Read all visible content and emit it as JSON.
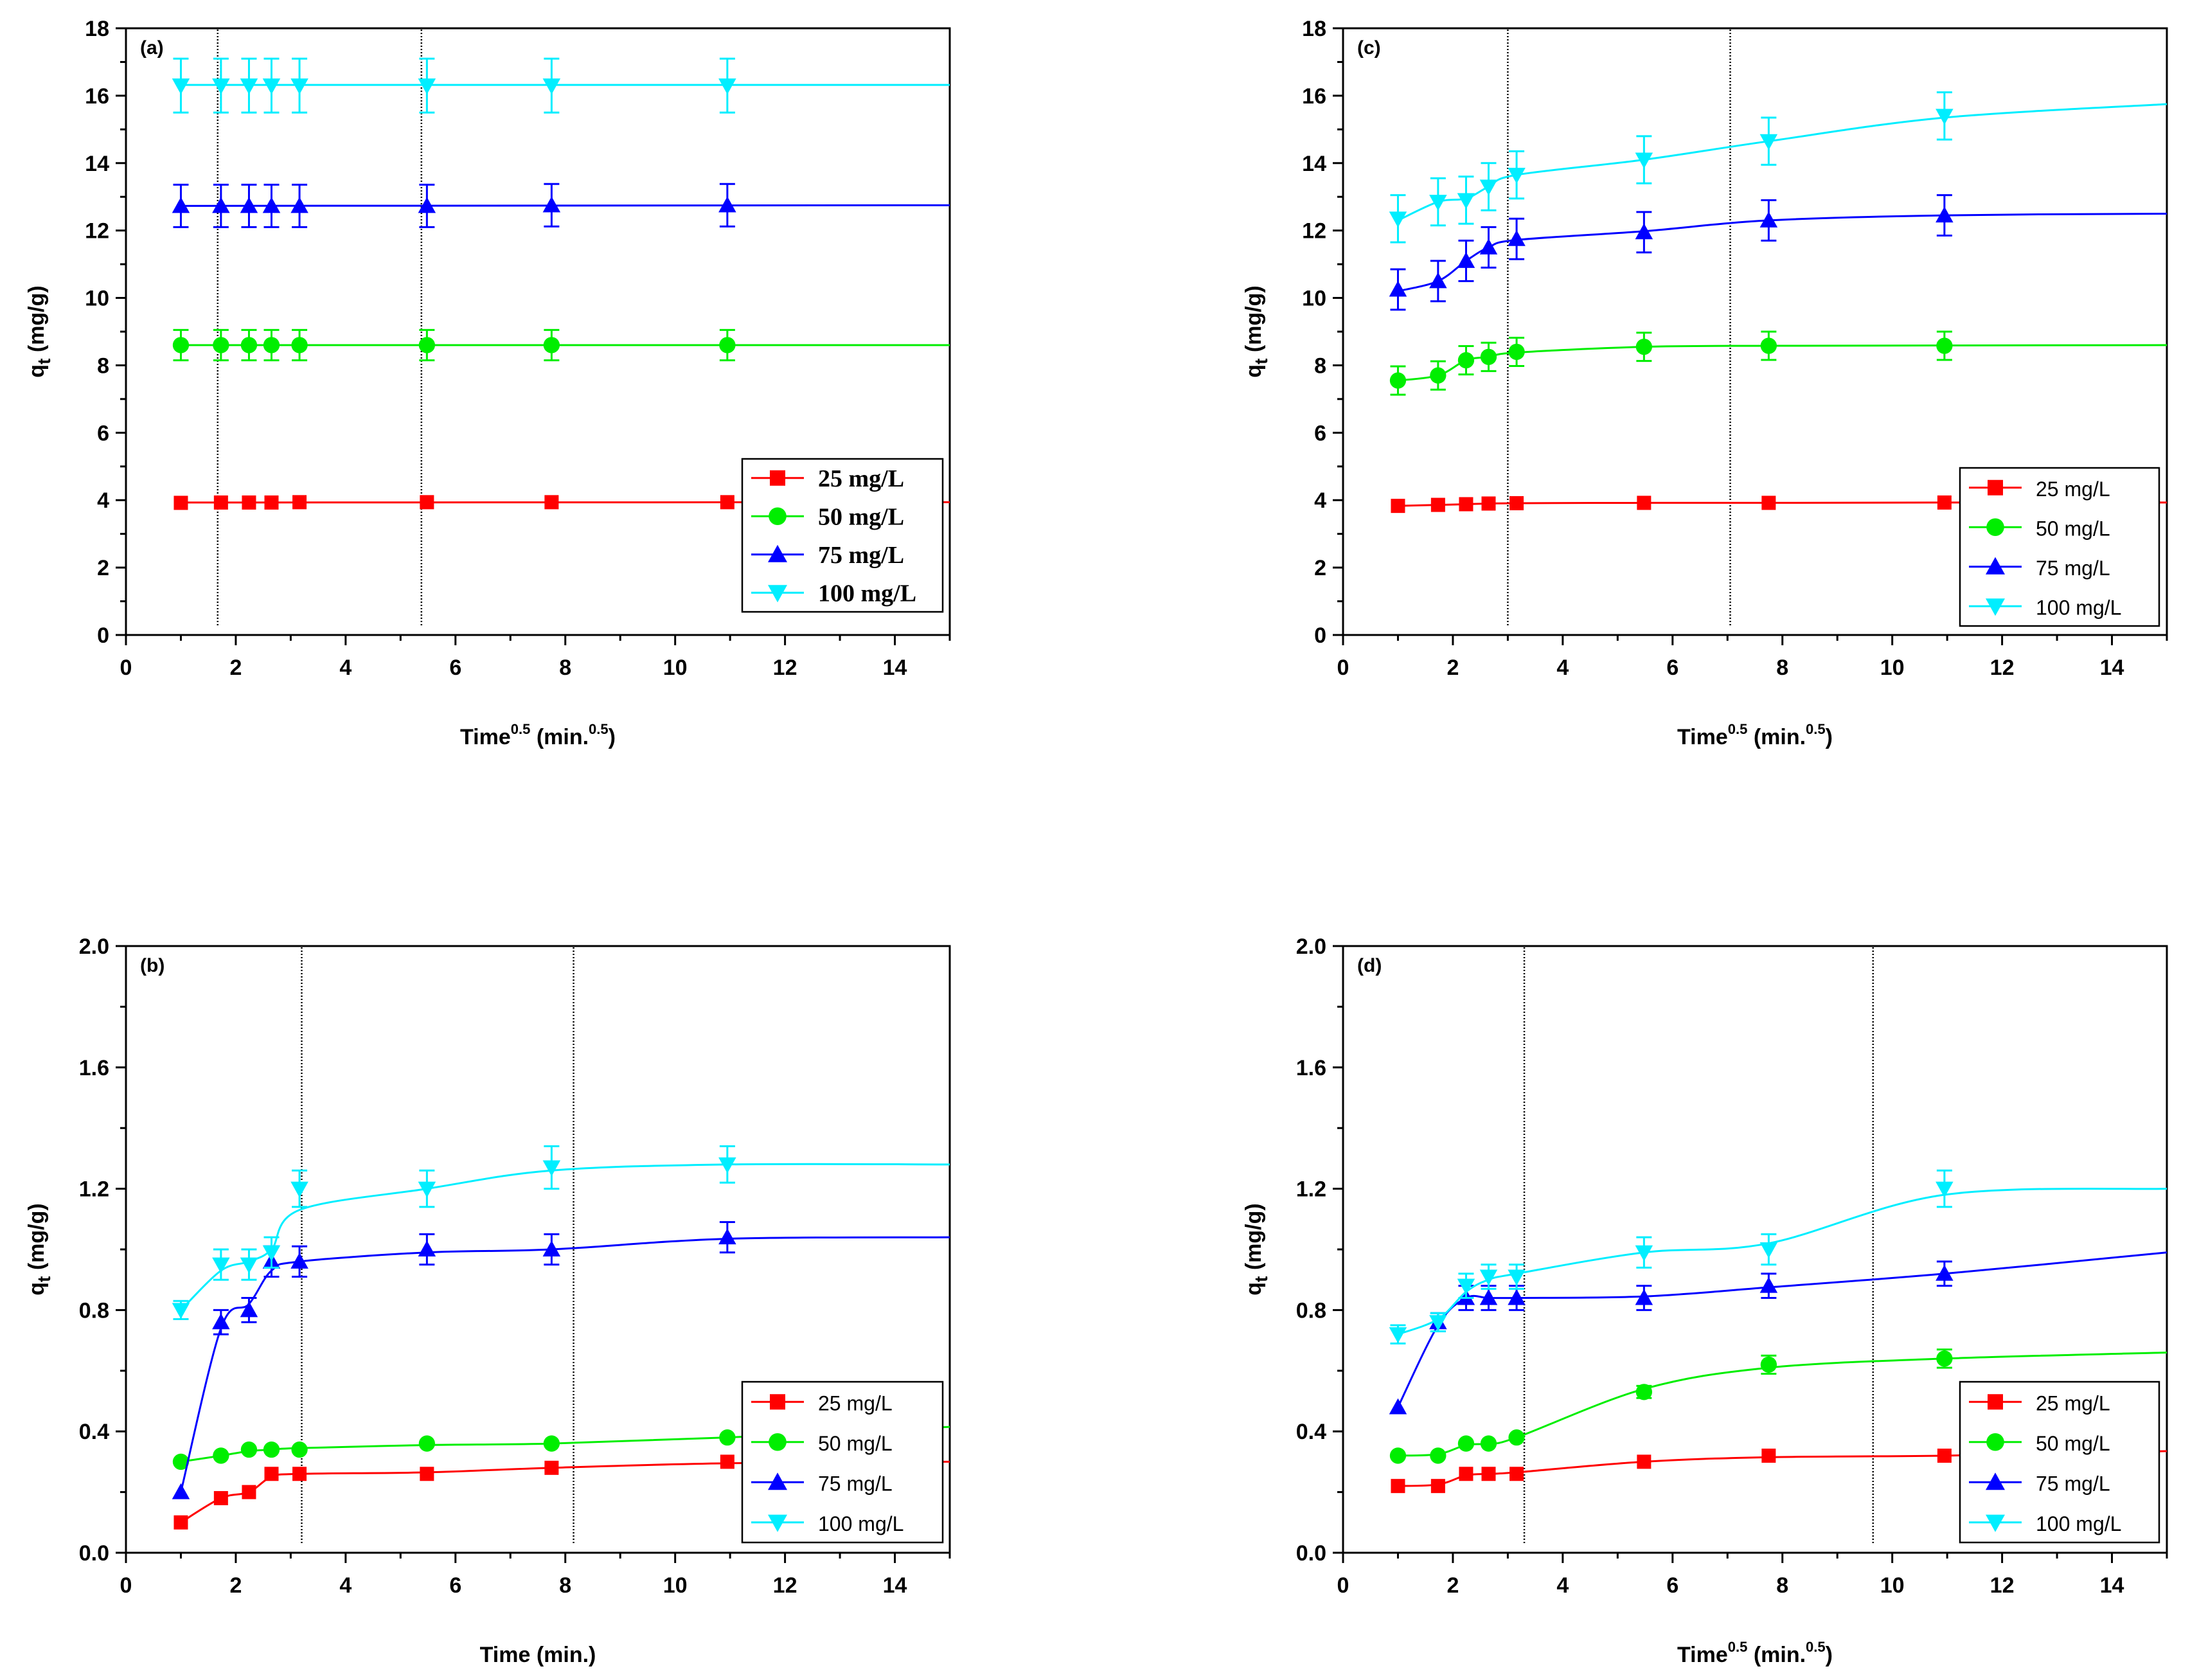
{
  "figure": {
    "description_labels": [
      "(a)",
      "(b)",
      "(c)",
      "(d)"
    ]
  },
  "colors": {
    "25 mg/L": "#ff0000",
    "50 mg/L": "#00ee00",
    "75 mg/L": "#0000ff",
    "100 mg/L": "#00eeff"
  },
  "chart_data": [
    {
      "panel": "(a)",
      "type": "line",
      "title": "",
      "xlabel": "Time",
      "xlabel_sup1": "0.5",
      "xlabel_mid": " (min.",
      "xlabel_sup2": "0.5",
      "xlabel_end": ")",
      "ylabel": "q",
      "ylabel_sub": "t",
      "ylabel_unit": " (mg/g)",
      "xlim": [
        0,
        15
      ],
      "ylim": [
        0,
        18
      ],
      "xticks": [
        "0",
        "2",
        "4",
        "6",
        "8",
        "10",
        "12",
        "14"
      ],
      "xtick_values": [
        0,
        2,
        4,
        6,
        8,
        10,
        12,
        14
      ],
      "yticks": [
        "0",
        "2",
        "4",
        "6",
        "8",
        "10",
        "12",
        "14",
        "16",
        "18"
      ],
      "ytick_values": [
        0,
        2,
        4,
        6,
        8,
        10,
        12,
        14,
        16,
        18
      ],
      "vlines": [
        1.67,
        5.38
      ],
      "legend_style": "serif",
      "x": [
        1,
        1.73,
        2.24,
        2.65,
        3.16,
        5.48,
        7.75,
        10.95
      ],
      "series": [
        {
          "name": "25 mg/L",
          "marker": "square",
          "values": [
            3.92,
            3.93,
            3.93,
            3.93,
            3.94,
            3.94,
            3.94,
            3.94
          ],
          "err": [
            0,
            0,
            0,
            0,
            0,
            0,
            0,
            0
          ],
          "fit_x": [
            1,
            15
          ],
          "fit_y": [
            3.93,
            3.94
          ]
        },
        {
          "name": "50 mg/L",
          "marker": "circle",
          "values": [
            8.6,
            8.6,
            8.6,
            8.6,
            8.6,
            8.6,
            8.6,
            8.6
          ],
          "err": [
            0.45,
            0.45,
            0.45,
            0.45,
            0.45,
            0.45,
            0.45,
            0.45
          ],
          "fit_x": [
            1,
            15
          ],
          "fit_y": [
            8.6,
            8.6
          ]
        },
        {
          "name": "75 mg/L",
          "marker": "triangle-up",
          "values": [
            12.73,
            12.73,
            12.73,
            12.73,
            12.73,
            12.73,
            12.75,
            12.75
          ],
          "err": [
            0.63,
            0.63,
            0.63,
            0.63,
            0.63,
            0.63,
            0.63,
            0.63
          ],
          "fit_x": [
            1,
            15
          ],
          "fit_y": [
            12.73,
            12.75
          ]
        },
        {
          "name": "100 mg/L",
          "marker": "triangle-down",
          "values": [
            16.3,
            16.3,
            16.3,
            16.3,
            16.3,
            16.3,
            16.3,
            16.3
          ],
          "err": [
            0.8,
            0.8,
            0.8,
            0.8,
            0.8,
            0.8,
            0.8,
            0.8
          ],
          "fit_x": [
            1,
            15
          ],
          "fit_y": [
            16.32,
            16.32
          ]
        }
      ]
    },
    {
      "panel": "(c)",
      "type": "line",
      "title": "",
      "xlabel": "Time",
      "xlabel_sup1": "0.5",
      "xlabel_mid": " (min.",
      "xlabel_sup2": "0.5",
      "xlabel_end": ")",
      "ylabel": "q",
      "ylabel_sub": "t",
      "ylabel_unit": " (mg/g)",
      "xlim": [
        0,
        15
      ],
      "ylim": [
        0,
        18
      ],
      "xticks": [
        "0",
        "2",
        "4",
        "6",
        "8",
        "10",
        "12",
        "14"
      ],
      "xtick_values": [
        0,
        2,
        4,
        6,
        8,
        10,
        12,
        14
      ],
      "yticks": [
        "0",
        "2",
        "4",
        "6",
        "8",
        "10",
        "12",
        "14",
        "16",
        "18"
      ],
      "ytick_values": [
        0,
        2,
        4,
        6,
        8,
        10,
        12,
        14,
        16,
        18
      ],
      "vlines": [
        3.0,
        7.05
      ],
      "legend_style": "sans",
      "x": [
        1,
        1.73,
        2.24,
        2.65,
        3.16,
        5.48,
        7.75,
        10.95
      ],
      "series": [
        {
          "name": "25 mg/L",
          "marker": "square",
          "values": [
            3.83,
            3.86,
            3.88,
            3.9,
            3.91,
            3.92,
            3.92,
            3.93
          ],
          "err": [
            0,
            0,
            0,
            0,
            0,
            0,
            0,
            0
          ],
          "fit_x": [
            1,
            1.73,
            2.24,
            2.65,
            3.16,
            5.48,
            7.75,
            10.95,
            15
          ],
          "fit_y": [
            3.83,
            3.86,
            3.88,
            3.9,
            3.91,
            3.92,
            3.92,
            3.93,
            3.93
          ]
        },
        {
          "name": "50 mg/L",
          "marker": "circle",
          "values": [
            7.55,
            7.7,
            8.15,
            8.25,
            8.4,
            8.55,
            8.58,
            8.58
          ],
          "err": [
            0.42,
            0.42,
            0.42,
            0.42,
            0.42,
            0.42,
            0.42,
            0.42
          ],
          "fit_x": [
            1,
            1.73,
            2.24,
            2.65,
            3.16,
            5.48,
            7.75,
            10.95,
            15
          ],
          "fit_y": [
            7.55,
            7.7,
            8.15,
            8.25,
            8.38,
            8.55,
            8.58,
            8.59,
            8.6
          ]
        },
        {
          "name": "75 mg/L",
          "marker": "triangle-up",
          "values": [
            10.25,
            10.5,
            11.1,
            11.5,
            11.75,
            11.95,
            12.3,
            12.45
          ],
          "err": [
            0.6,
            0.6,
            0.6,
            0.6,
            0.6,
            0.6,
            0.6,
            0.6
          ],
          "fit_x": [
            1,
            1.73,
            2.24,
            2.65,
            3.16,
            5.48,
            7.75,
            10.95,
            15
          ],
          "fit_y": [
            10.2,
            10.5,
            11.1,
            11.5,
            11.72,
            11.98,
            12.3,
            12.45,
            12.5
          ]
        },
        {
          "name": "100 mg/L",
          "marker": "triangle-down",
          "values": [
            12.35,
            12.85,
            12.9,
            13.3,
            13.65,
            14.1,
            14.65,
            15.4
          ],
          "err": [
            0.7,
            0.7,
            0.7,
            0.7,
            0.7,
            0.7,
            0.7,
            0.7
          ],
          "fit_x": [
            1,
            1.73,
            2.24,
            2.65,
            3.16,
            5.48,
            7.75,
            10.95,
            15
          ],
          "fit_y": [
            12.3,
            12.85,
            12.95,
            13.3,
            13.65,
            14.1,
            14.65,
            15.35,
            15.75
          ]
        }
      ]
    },
    {
      "panel": "(b)",
      "type": "line",
      "title": "",
      "xlabel": "Time (min.)",
      "ylabel": "q",
      "ylabel_sub": "t",
      "ylabel_unit": " (mg/g)",
      "xlim": [
        0,
        15
      ],
      "ylim": [
        0,
        2.0
      ],
      "xticks": [
        "0",
        "2",
        "4",
        "6",
        "8",
        "10",
        "12",
        "14"
      ],
      "xtick_values": [
        0,
        2,
        4,
        6,
        8,
        10,
        12,
        14
      ],
      "yticks": [
        "0.0",
        "0.4",
        "0.8",
        "1.2",
        "1.6",
        "2.0"
      ],
      "ytick_values": [
        0,
        0.4,
        0.8,
        1.2,
        1.6,
        2.0
      ],
      "vlines": [
        3.2,
        8.15
      ],
      "legend_style": "sans",
      "x": [
        1,
        1.73,
        2.24,
        2.65,
        3.16,
        5.48,
        7.75,
        10.95
      ],
      "series": [
        {
          "name": "25 mg/L",
          "marker": "square",
          "values": [
            0.1,
            0.18,
            0.2,
            0.26,
            0.26,
            0.26,
            0.28,
            0.3
          ],
          "err": [
            0,
            0,
            0,
            0,
            0,
            0,
            0,
            0
          ],
          "fit_x": [
            1,
            1.73,
            2.24,
            2.65,
            3.16,
            5.48,
            7.75,
            10.95,
            15
          ],
          "fit_y": [
            0.1,
            0.18,
            0.2,
            0.25,
            0.26,
            0.265,
            0.28,
            0.295,
            0.3
          ]
        },
        {
          "name": "50 mg/L",
          "marker": "circle",
          "values": [
            0.3,
            0.32,
            0.34,
            0.34,
            0.34,
            0.36,
            0.36,
            0.38
          ],
          "err": [
            0,
            0,
            0,
            0,
            0,
            0,
            0,
            0
          ],
          "fit_x": [
            1,
            1.73,
            2.24,
            2.65,
            3.16,
            5.48,
            7.75,
            10.95,
            15
          ],
          "fit_y": [
            0.3,
            0.32,
            0.335,
            0.34,
            0.345,
            0.355,
            0.36,
            0.38,
            0.415
          ]
        },
        {
          "name": "75 mg/L",
          "marker": "triangle-up",
          "values": [
            0.2,
            0.76,
            0.8,
            0.96,
            0.96,
            1.0,
            1.0,
            1.04
          ],
          "err": [
            0,
            0.04,
            0.04,
            0.05,
            0.05,
            0.05,
            0.05,
            0.05
          ],
          "fit_x": [
            1,
            1.73,
            2.24,
            2.65,
            3.16,
            5.48,
            7.75,
            10.95,
            15
          ],
          "fit_y": [
            0.2,
            0.74,
            0.82,
            0.93,
            0.96,
            0.99,
            1.0,
            1.035,
            1.04
          ]
        },
        {
          "name": "100 mg/L",
          "marker": "triangle-down",
          "values": [
            0.8,
            0.95,
            0.95,
            0.99,
            1.2,
            1.2,
            1.27,
            1.28
          ],
          "err": [
            0.03,
            0.05,
            0.05,
            0.05,
            0.06,
            0.06,
            0.07,
            0.06
          ],
          "fit_x": [
            1,
            1.73,
            2.24,
            2.65,
            3.16,
            5.48,
            7.75,
            10.95,
            15
          ],
          "fit_y": [
            0.8,
            0.93,
            0.96,
            1.0,
            1.13,
            1.2,
            1.26,
            1.28,
            1.28
          ]
        }
      ]
    },
    {
      "panel": "(d)",
      "type": "line",
      "title": "",
      "xlabel": "Time",
      "xlabel_sup1": "0.5",
      "xlabel_mid": " (min.",
      "xlabel_sup2": "0.5",
      "xlabel_end": ")",
      "ylabel": "q",
      "ylabel_sub": "t",
      "ylabel_unit": " (mg/g)",
      "xlim": [
        0,
        15
      ],
      "ylim": [
        0,
        2.0
      ],
      "xticks": [
        "0",
        "2",
        "4",
        "6",
        "8",
        "10",
        "12",
        "14"
      ],
      "xtick_values": [
        0,
        2,
        4,
        6,
        8,
        10,
        12,
        14
      ],
      "yticks": [
        "0.0",
        "0.4",
        "0.8",
        "1.2",
        "1.6",
        "2.0"
      ],
      "ytick_values": [
        0,
        0.4,
        0.8,
        1.2,
        1.6,
        2.0
      ],
      "vlines": [
        3.3,
        9.65
      ],
      "legend_style": "sans",
      "x": [
        1,
        1.73,
        2.24,
        2.65,
        3.16,
        5.48,
        7.75,
        10.95
      ],
      "series": [
        {
          "name": "25 mg/L",
          "marker": "square",
          "values": [
            0.22,
            0.22,
            0.26,
            0.26,
            0.26,
            0.3,
            0.32,
            0.32
          ],
          "err": [
            0,
            0,
            0,
            0,
            0,
            0,
            0,
            0
          ],
          "fit_x": [
            1,
            1.73,
            2.24,
            2.65,
            3.16,
            5.48,
            7.75,
            10.95,
            15
          ],
          "fit_y": [
            0.22,
            0.225,
            0.255,
            0.26,
            0.265,
            0.3,
            0.315,
            0.32,
            0.335
          ]
        },
        {
          "name": "50 mg/L",
          "marker": "circle",
          "values": [
            0.32,
            0.32,
            0.36,
            0.36,
            0.38,
            0.53,
            0.62,
            0.64
          ],
          "err": [
            0,
            0,
            0,
            0,
            0,
            0.02,
            0.03,
            0.03
          ],
          "fit_x": [
            1,
            1.73,
            2.24,
            2.65,
            3.16,
            5.48,
            7.75,
            10.95,
            15
          ],
          "fit_y": [
            0.32,
            0.325,
            0.355,
            0.36,
            0.38,
            0.54,
            0.61,
            0.64,
            0.66
          ]
        },
        {
          "name": "75 mg/L",
          "marker": "triangle-up",
          "values": [
            0.48,
            0.76,
            0.84,
            0.84,
            0.84,
            0.84,
            0.88,
            0.92
          ],
          "err": [
            0,
            0.03,
            0.04,
            0.04,
            0.04,
            0.04,
            0.04,
            0.04
          ],
          "fit_x": [
            1,
            1.73,
            2.24,
            2.65,
            3.16,
            5.48,
            7.75,
            10.95,
            15
          ],
          "fit_y": [
            0.48,
            0.75,
            0.84,
            0.84,
            0.84,
            0.845,
            0.875,
            0.92,
            0.99
          ]
        },
        {
          "name": "100 mg/L",
          "marker": "triangle-down",
          "values": [
            0.72,
            0.76,
            0.88,
            0.91,
            0.91,
            0.99,
            1.0,
            1.2
          ],
          "err": [
            0.03,
            0.03,
            0.04,
            0.04,
            0.04,
            0.05,
            0.05,
            0.06
          ],
          "fit_x": [
            1,
            1.73,
            2.24,
            2.65,
            3.16,
            5.48,
            7.75,
            10.95,
            15
          ],
          "fit_y": [
            0.72,
            0.77,
            0.86,
            0.9,
            0.92,
            0.99,
            1.02,
            1.18,
            1.2
          ]
        }
      ]
    }
  ]
}
